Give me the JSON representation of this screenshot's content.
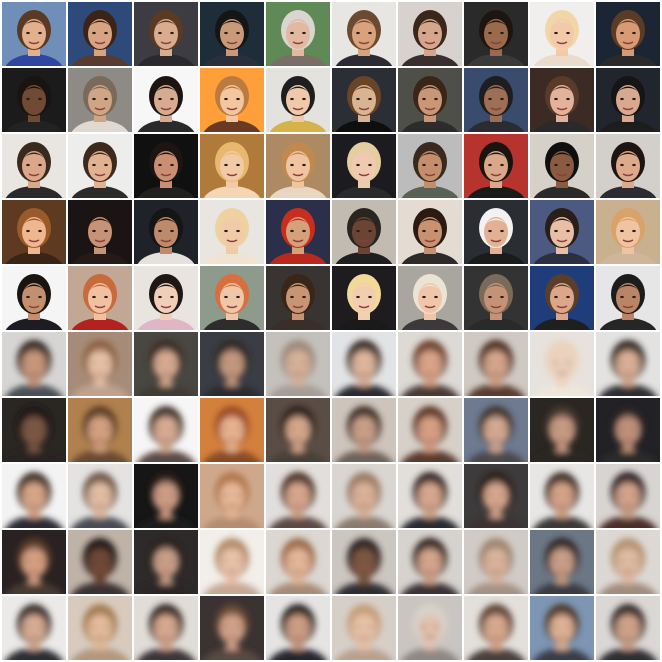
{
  "grid": {
    "rows": 10,
    "cols": 10,
    "row_kinds": [
      "original",
      "original",
      "original",
      "original",
      "original",
      "reconstruction",
      "reconstruction",
      "reconstruction",
      "reconstruction",
      "reconstruction"
    ]
  },
  "tiles": [
    {
      "bg": "#6f8fb8",
      "hair": "#5a3a22",
      "skin": "#e2b08c",
      "cloth": "#2f47a0"
    },
    {
      "bg": "#2d4a7a",
      "hair": "#3a2418",
      "skin": "#d8a382",
      "cloth": "#5a3a2e"
    },
    {
      "bg": "#3c3c42",
      "hair": "#5a3a25",
      "skin": "#d9ab8f",
      "cloth": "#2a2a2e"
    },
    {
      "bg": "#1e2d3a",
      "hair": "#151515",
      "skin": "#c99a7a",
      "cloth": "#2a2f3a"
    },
    {
      "bg": "#5f8a55",
      "hair": "#d9d5d0",
      "skin": "#e2b9a0",
      "cloth": "#7a6e66"
    },
    {
      "bg": "#e7e6e3",
      "hair": "#6b4a30",
      "skin": "#d8a27d",
      "cloth": "#2c2a33"
    },
    {
      "bg": "#d8d2cf",
      "hair": "#3a261b",
      "skin": "#d6a68c",
      "cloth": "#3a2e2e"
    },
    {
      "bg": "#2a2a2a",
      "hair": "#1d1511",
      "skin": "#9a6a4c",
      "cloth": "#3a3a3a"
    },
    {
      "bg": "#f0efee",
      "hair": "#f1d7a8",
      "skin": "#f2caa9",
      "cloth": "#ecdacb"
    },
    {
      "bg": "#1c2533",
      "hair": "#5a3b25",
      "skin": "#d79a74",
      "cloth": "#2a2a2a"
    },
    {
      "bg": "#1b1b1b",
      "hair": "#1a1410",
      "skin": "#6f4a35",
      "cloth": "#222222"
    },
    {
      "bg": "#8e8b86",
      "hair": "#7a6a5a",
      "skin": "#d0a586",
      "cloth": "#e0d9cf"
    },
    {
      "bg": "#f7f7f7",
      "hair": "#1c1410",
      "skin": "#d7ab91",
      "cloth": "#2a2a2a"
    },
    {
      "bg": "#ff9f3a",
      "hair": "#b97b3f",
      "skin": "#f3c6a0",
      "cloth": "#6a3b24"
    },
    {
      "bg": "#e4e2df",
      "hair": "#1e1e1e",
      "skin": "#f0c8ac",
      "cloth": "#d6b24b"
    },
    {
      "bg": "#2b2f35",
      "hair": "#6a4427",
      "skin": "#d9b493",
      "cloth": "#0e0e0e"
    },
    {
      "bg": "#4f4f4a",
      "hair": "#3a2619",
      "skin": "#c99678",
      "cloth": "#2c2c2c"
    },
    {
      "bg": "#3a4c6e",
      "hair": "#1d1d22",
      "skin": "#9e6e55",
      "cloth": "#2a2c32"
    },
    {
      "bg": "#3b2b24",
      "hair": "#5a3a2b",
      "skin": "#e2b29a",
      "cloth": "#2a2a2a"
    },
    {
      "bg": "#20252e",
      "hair": "#151515",
      "skin": "#d9a98f",
      "cloth": "#1d1d1d"
    },
    {
      "bg": "#e9e6e1",
      "hair": "#3a2a1e",
      "skin": "#dba78a",
      "cloth": "#2a2a2a"
    },
    {
      "bg": "#ededeb",
      "hair": "#3e2a1d",
      "skin": "#e1b291",
      "cloth": "#2b2b2b"
    },
    {
      "bg": "#101010",
      "hair": "#1d1512",
      "skin": "#c98e74",
      "cloth": "#202020"
    },
    {
      "bg": "#b07a3a",
      "hair": "#e9b870",
      "skin": "#f2caa5",
      "cloth": "#f4d6b5"
    },
    {
      "bg": "#ad8a63",
      "hair": "#c2894e",
      "skin": "#f1c4a1",
      "cloth": "#e9d6c0"
    },
    {
      "bg": "#1c1c20",
      "hair": "#e6cda0",
      "skin": "#efcab0",
      "cloth": "#2a2a2a"
    },
    {
      "bg": "#bcbcbc",
      "hair": "#3a2a1e",
      "skin": "#c48e6c",
      "cloth": "#5a6256"
    },
    {
      "bg": "#b7332e",
      "hair": "#1a1410",
      "skin": "#d9a88a",
      "cloth": "#1a1a1a"
    },
    {
      "bg": "#d5d0c8",
      "hair": "#0f0f10",
      "skin": "#8a5a41",
      "cloth": "#2a2a2a"
    },
    {
      "bg": "#d3cfca",
      "hair": "#1e1512",
      "skin": "#dca98b",
      "cloth": "#2d2b33"
    },
    {
      "bg": "#5d3a20",
      "hair": "#9a5a2a",
      "skin": "#eeb78f",
      "cloth": "#3a2418"
    },
    {
      "bg": "#1a1414",
      "hair": "#1b1410",
      "skin": "#c69378",
      "cloth": "#261a17"
    },
    {
      "bg": "#20222a",
      "hair": "#151515",
      "skin": "#bf8a6c",
      "cloth": "#e5e2de"
    },
    {
      "bg": "#e9e6e2",
      "hair": "#eed2a0",
      "skin": "#f1caa8",
      "cloth": "#efe3d2"
    },
    {
      "bg": "#2b2f4a",
      "hair": "#c72e1e",
      "skin": "#d6a07a",
      "cloth": "#b8281d"
    },
    {
      "bg": "#c1bbb2",
      "hair": "#2a2520",
      "skin": "#6b4433",
      "cloth": "#1f1f1f"
    },
    {
      "bg": "#e4dcd2",
      "hair": "#2a1a12",
      "skin": "#c8916f",
      "cloth": "#2f2a2a"
    },
    {
      "bg": "#2a2e33",
      "hair": "#f2f2f2",
      "skin": "#e2b194",
      "cloth": "#1b1b1b"
    },
    {
      "bg": "#4c5a82",
      "hair": "#2a1e18",
      "skin": "#e6bfa4",
      "cloth": "#2b2f40"
    },
    {
      "bg": "#c9b08f",
      "hair": "#d9a26a",
      "skin": "#f0c3a2",
      "cloth": "#cfb69a"
    },
    {
      "bg": "#f5f5f5",
      "hair": "#1a1410",
      "skin": "#c2906e",
      "cloth": "#1c1c24"
    },
    {
      "bg": "#c2a894",
      "hair": "#c76a3c",
      "skin": "#f0c0a0",
      "cloth": "#b3221e"
    },
    {
      "bg": "#e8e4e0",
      "hair": "#1e1714",
      "skin": "#efcfba",
      "cloth": "#e0b6c4"
    },
    {
      "bg": "#8e9a8c",
      "hair": "#d7703e",
      "skin": "#f0c6a8",
      "cloth": "#2d2d2d"
    },
    {
      "bg": "#383432",
      "hair": "#3a2619",
      "skin": "#c79474",
      "cloth": "#3a2e28"
    },
    {
      "bg": "#1e1c1f",
      "hair": "#f2d899",
      "skin": "#f2cdb0",
      "cloth": "#1a1a1a"
    },
    {
      "bg": "#a9a6a0",
      "hair": "#ece4d2",
      "skin": "#f0c6aa",
      "cloth": "#3a3a3a"
    },
    {
      "bg": "#333333",
      "hair": "#7a6a5a",
      "skin": "#c49376",
      "cloth": "#2a2a2a"
    },
    {
      "bg": "#1e3d7a",
      "hair": "#5a3e2a",
      "skin": "#dca68a",
      "cloth": "#1f1f1f"
    },
    {
      "bg": "#e6e6e6",
      "hair": "#1c1c1c",
      "skin": "#b98566",
      "cloth": "#262626"
    },
    {
      "bg": "#d6d5d4",
      "hair": "#2e241e",
      "skin": "#c99a7d",
      "cloth": "#4a4f59"
    },
    {
      "bg": "#a68c78",
      "hair": "#8b6040",
      "skin": "#e7c1a7",
      "cloth": "#bfa38f"
    },
    {
      "bg": "#4a4643",
      "hair": "#3a2a20",
      "skin": "#d8ac92",
      "cloth": "#3f3a36"
    },
    {
      "bg": "#3a3d44",
      "hair": "#2d2520",
      "skin": "#c59a80",
      "cloth": "#2a2c33"
    },
    {
      "bg": "#c4c0bb",
      "hair": "#9c8a7a",
      "skin": "#d9b39b",
      "cloth": "#a59d96"
    },
    {
      "bg": "#e2e3e4",
      "hair": "#2a211c",
      "skin": "#e2b79e",
      "cloth": "#2a2a30"
    },
    {
      "bg": "#ddd9d5",
      "hair": "#6a3e28",
      "skin": "#dba68a",
      "cloth": "#4b3a34"
    },
    {
      "bg": "#cfc9c3",
      "hair": "#4a2c1e",
      "skin": "#d7a78c",
      "cloth": "#5a3e32"
    },
    {
      "bg": "#e7e2dd",
      "hair": "#e9d4bb",
      "skin": "#ecd1bd",
      "cloth": "#efe6dc"
    },
    {
      "bg": "#e3e2e1",
      "hair": "#2a221d",
      "skin": "#dbb097",
      "cloth": "#2d2d33"
    },
    {
      "bg": "#2a2624",
      "hair": "#1e1714",
      "skin": "#7a5845",
      "cloth": "#2a2420"
    },
    {
      "bg": "#b0814f",
      "hair": "#5a3a22",
      "skin": "#d6a282",
      "cloth": "#6a4a33"
    },
    {
      "bg": "#f6f6f6",
      "hair": "#3a2a20",
      "skin": "#d8ad94",
      "cloth": "#5c4b44"
    },
    {
      "bg": "#d4803e",
      "hair": "#9a4a22",
      "skin": "#e9b491",
      "cloth": "#8a4a28"
    },
    {
      "bg": "#5a4e45",
      "hair": "#2a1e18",
      "skin": "#d6a88c",
      "cloth": "#4a3f38"
    },
    {
      "bg": "#cdc4bc",
      "hair": "#3a2a20",
      "skin": "#caa189",
      "cloth": "#6e625a"
    },
    {
      "bg": "#d7d0c9",
      "hair": "#5a3320",
      "skin": "#d9a185",
      "cloth": "#5a3b2e"
    },
    {
      "bg": "#6d7a8f",
      "hair": "#3e302a",
      "skin": "#d5ab94",
      "cloth": "#4c4a4d"
    },
    {
      "bg": "#2a2724",
      "hair": "#4a3a30",
      "skin": "#c99c84",
      "cloth": "#2a2622"
    },
    {
      "bg": "#202225",
      "hair": "#2a2320",
      "skin": "#c0927c",
      "cloth": "#2a2a2c"
    },
    {
      "bg": "#f3f3f3",
      "hair": "#3a2a20",
      "skin": "#d9a88a",
      "cloth": "#2a2c34"
    },
    {
      "bg": "#e4e3e1",
      "hair": "#6e5444",
      "skin": "#e4bfa6",
      "cloth": "#4a4b55"
    },
    {
      "bg": "#141414",
      "hair": "#2a1e19",
      "skin": "#cf9e85",
      "cloth": "#1f1e1e"
    },
    {
      "bg": "#cfa88c",
      "hair": "#b1764a",
      "skin": "#e8b99a",
      "cloth": "#b58c70"
    },
    {
      "bg": "#e2dedb",
      "hair": "#4a2e22",
      "skin": "#d9a88e",
      "cloth": "#5c4a44"
    },
    {
      "bg": "#d9d5d1",
      "hair": "#9a7a63",
      "skin": "#dcb49c",
      "cloth": "#8b7a70"
    },
    {
      "bg": "#e2dfdb",
      "hair": "#2a1f1b",
      "skin": "#d8aa90",
      "cloth": "#2c2c32"
    },
    {
      "bg": "#3d3b3a",
      "hair": "#2a1e18",
      "skin": "#d7a88e",
      "cloth": "#3a3230"
    },
    {
      "bg": "#e7e6e5",
      "hair": "#3a2a20",
      "skin": "#d6a58a",
      "cloth": "#3a3838"
    },
    {
      "bg": "#d8d4d1",
      "hair": "#22191a",
      "skin": "#d3a58c",
      "cloth": "#4a2f2c"
    },
    {
      "bg": "#2a2220",
      "hair": "#5a3a25",
      "skin": "#d6a083",
      "cloth": "#4a3a30"
    },
    {
      "bg": "#bfb3a8",
      "hair": "#1e1713",
      "skin": "#6e4a38",
      "cloth": "#3a3230"
    },
    {
      "bg": "#2f2b29",
      "hair": "#2a201a",
      "skin": "#caa08a",
      "cloth": "#2c2826"
    },
    {
      "bg": "#f2eee9",
      "hair": "#b38a6a",
      "skin": "#eac4aa",
      "cloth": "#c7a895"
    },
    {
      "bg": "#dcd7d2",
      "hair": "#9c6a4a",
      "skin": "#e5b89a",
      "cloth": "#a78a78"
    },
    {
      "bg": "#ccc6c0",
      "hair": "#2a2320",
      "skin": "#7e5842",
      "cloth": "#2d2d33"
    },
    {
      "bg": "#d6d2ce",
      "hair": "#2a1e18",
      "skin": "#d5a78e",
      "cloth": "#3a3234"
    },
    {
      "bg": "#d0cbc6",
      "hair": "#9e8470",
      "skin": "#dcb59e",
      "cloth": "#a59285"
    },
    {
      "bg": "#6c7786",
      "hair": "#2a2220",
      "skin": "#caa08a",
      "cloth": "#3a3a44"
    },
    {
      "bg": "#dcd8d3",
      "hair": "#b59272",
      "skin": "#e0bca4",
      "cloth": "#a38c7e"
    },
    {
      "bg": "#eceae8",
      "hair": "#2e2520",
      "skin": "#d9ad95",
      "cloth": "#2b2d35"
    },
    {
      "bg": "#d8cbbe",
      "hair": "#a1794f",
      "skin": "#e6bd9e",
      "cloth": "#b3977e"
    },
    {
      "bg": "#e1dcd7",
      "hair": "#2a201b",
      "skin": "#d8aa91",
      "cloth": "#3e3638"
    },
    {
      "bg": "#3a3330",
      "hair": "#6a4a36",
      "skin": "#d2a38a",
      "cloth": "#5a4a42"
    },
    {
      "bg": "#e5e4e3",
      "hair": "#1e1a18",
      "skin": "#cf9f86",
      "cloth": "#262830"
    },
    {
      "bg": "#d6cfc8",
      "hair": "#c49d78",
      "skin": "#e8c3a8",
      "cloth": "#b9a190"
    },
    {
      "bg": "#cac5c0",
      "hair": "#d8d3cc",
      "skin": "#e2c1ad",
      "cloth": "#8e8884"
    },
    {
      "bg": "#e3dfdb",
      "hair": "#5a4030",
      "skin": "#d9ab90",
      "cloth": "#4b3f3a"
    },
    {
      "bg": "#7d96b4",
      "hair": "#4a3426",
      "skin": "#dfb397",
      "cloth": "#3a3d48"
    },
    {
      "bg": "#dad7d4",
      "hair": "#2a2420",
      "skin": "#d0a48b",
      "cloth": "#2e2e36"
    }
  ]
}
